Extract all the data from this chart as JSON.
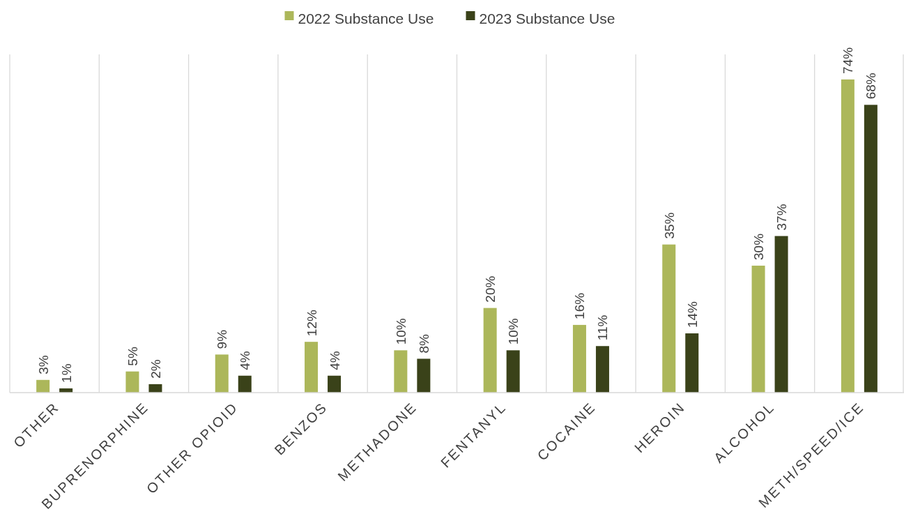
{
  "chart_data": {
    "type": "bar",
    "categories": [
      "OTHER",
      "BUPRENORPHINE",
      "OTHER OPIOID",
      "BENZOS",
      "METHADONE",
      "FENTANYL",
      "COCAINE",
      "HEROIN",
      "ALCOHOL",
      "METH/SPEED/ICE"
    ],
    "series": [
      {
        "name": "2022 Substance Use",
        "color": "#acb75a",
        "values": [
          3,
          5,
          9,
          12,
          10,
          20,
          16,
          35,
          30,
          74
        ],
        "value_labels": [
          "3%",
          "5%",
          "9%",
          "12%",
          "10%",
          "20%",
          "16%",
          "35%",
          "30%",
          "74%"
        ]
      },
      {
        "name": "2023 Substance Use",
        "color": "#3a4219",
        "values": [
          1,
          2,
          4,
          4,
          8,
          10,
          11,
          14,
          37,
          68
        ],
        "value_labels": [
          "1%",
          "2%",
          "4%",
          "4%",
          "8%",
          "10%",
          "11%",
          "14%",
          "37%",
          "68%"
        ]
      }
    ],
    "grid": "x",
    "legend": "top"
  }
}
